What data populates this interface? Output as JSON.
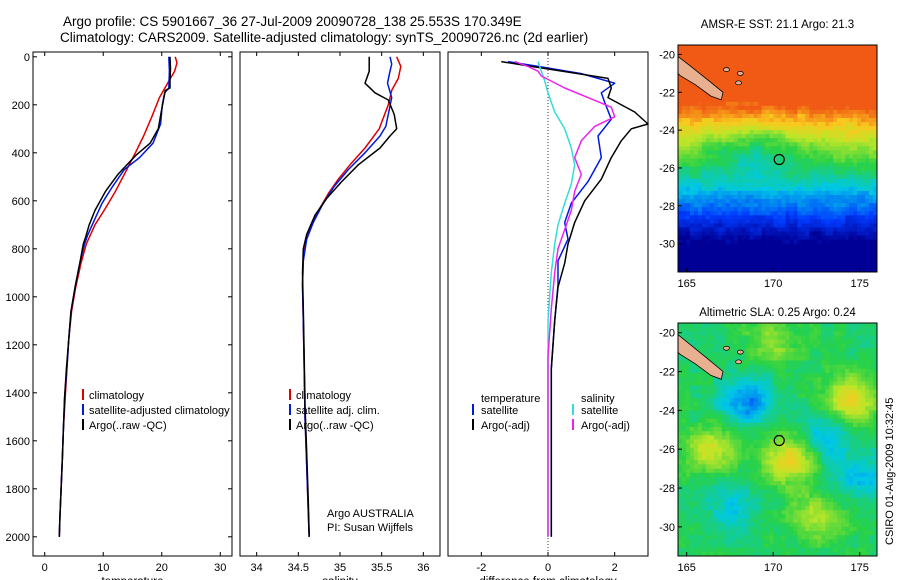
{
  "header": {
    "line1": "Argo profile: CS 5901667_36 27-Jul-2009 20090728_138 25.553S 170.349E",
    "line2": "Climatology: CARS2009. Satellite-adjusted climatology: synTS_20090726.nc (2d earlier)"
  },
  "side_note": "CSIRO 01-Aug-2009 10:32:45",
  "float_note": {
    "line1": "Argo AUSTRALIA",
    "line2": "PI: Susan Wijffels"
  },
  "colors": {
    "red": "#dd0000",
    "blue": "#0018e0",
    "black": "#000000",
    "cyan": "#33dddd",
    "magenta": "#ee22ee",
    "land": "#e8b090"
  },
  "chart_data": [
    {
      "type": "line",
      "id": "temperature",
      "xlabel": "temperature",
      "ylabel": "",
      "xlim": [
        -2,
        32
      ],
      "ylim": [
        2080,
        -20
      ],
      "y_reversed": true,
      "xticks": [
        0,
        10,
        20,
        30
      ],
      "yticks": [
        0,
        200,
        400,
        600,
        800,
        1000,
        1200,
        1400,
        1600,
        1800,
        2000
      ],
      "legend": {
        "position": "lower-right",
        "items": [
          "climatology",
          "satellite-adjusted climatology",
          "Argo(..raw -QC)"
        ]
      },
      "series": [
        {
          "name": "climatology",
          "color": "red",
          "points": [
            [
              22.3,
              0
            ],
            [
              22.6,
              25
            ],
            [
              22.2,
              60
            ],
            [
              21.0,
              110
            ],
            [
              19.6,
              170
            ],
            [
              18.3,
              250
            ],
            [
              16.9,
              330
            ],
            [
              15.5,
              400
            ],
            [
              13.8,
              480
            ],
            [
              12.1,
              560
            ],
            [
              10.4,
              630
            ],
            [
              8.6,
              700
            ],
            [
              7.1,
              780
            ],
            [
              6.2,
              860
            ],
            [
              5.3,
              960
            ],
            [
              4.6,
              1060
            ],
            [
              4.1,
              1180
            ],
            [
              3.8,
              1300
            ],
            [
              3.5,
              1420
            ],
            [
              3.2,
              1550
            ],
            [
              3.0,
              1680
            ],
            [
              2.8,
              1800
            ],
            [
              2.6,
              1920
            ],
            [
              2.5,
              2000
            ]
          ]
        },
        {
          "name": "satellite-adjusted climatology",
          "color": "blue",
          "points": [
            [
              21.2,
              0
            ],
            [
              21.3,
              60
            ],
            [
              21.2,
              130
            ],
            [
              20.5,
              150
            ],
            [
              20.1,
              200
            ],
            [
              19.8,
              280
            ],
            [
              18.5,
              360
            ],
            [
              16.2,
              420
            ],
            [
              13.6,
              470
            ],
            [
              11.6,
              540
            ],
            [
              9.8,
              610
            ],
            [
              8.3,
              690
            ],
            [
              7.4,
              740
            ],
            [
              6.8,
              780
            ],
            [
              6.0,
              860
            ],
            [
              5.2,
              960
            ],
            [
              4.5,
              1060
            ],
            [
              4.1,
              1180
            ],
            [
              3.8,
              1300
            ],
            [
              3.4,
              1420
            ],
            [
              3.2,
              1550
            ],
            [
              3.0,
              1680
            ],
            [
              2.8,
              1800
            ],
            [
              2.6,
              1920
            ],
            [
              2.5,
              2000
            ]
          ]
        },
        {
          "name": "Argo(..raw -QC)",
          "color": "black",
          "points": [
            [
              21.4,
              0
            ],
            [
              21.5,
              50
            ],
            [
              21.4,
              100
            ],
            [
              21.4,
              130
            ],
            [
              20.6,
              140
            ],
            [
              19.9,
              230
            ],
            [
              19.4,
              300
            ],
            [
              18.0,
              360
            ],
            [
              15.6,
              410
            ],
            [
              12.5,
              490
            ],
            [
              10.4,
              560
            ],
            [
              8.6,
              640
            ],
            [
              7.6,
              700
            ],
            [
              7.0,
              750
            ],
            [
              6.6,
              780
            ],
            [
              6.0,
              860
            ],
            [
              5.2,
              960
            ],
            [
              4.5,
              1060
            ],
            [
              4.1,
              1180
            ],
            [
              3.7,
              1300
            ],
            [
              3.4,
              1420
            ],
            [
              3.2,
              1550
            ],
            [
              3.0,
              1680
            ],
            [
              2.8,
              1800
            ],
            [
              2.6,
              1920
            ],
            [
              2.5,
              2000
            ]
          ]
        }
      ]
    },
    {
      "type": "line",
      "id": "salinity",
      "xlabel": "salinity",
      "ylabel": "",
      "xlim": [
        33.8,
        36.2
      ],
      "ylim": [
        2080,
        -20
      ],
      "y_reversed": true,
      "xticks": [
        34,
        34.5,
        35,
        35.5,
        36
      ],
      "yticks": [],
      "legend": {
        "position": "lower-right",
        "items": [
          "climatology",
          "satellite adj. clim.",
          "Argo(..raw -QC)"
        ]
      },
      "series": [
        {
          "name": "climatology",
          "color": "red",
          "points": [
            [
              35.68,
              0
            ],
            [
              35.73,
              40
            ],
            [
              35.7,
              90
            ],
            [
              35.62,
              140
            ],
            [
              35.58,
              200
            ],
            [
              35.47,
              300
            ],
            [
              35.3,
              380
            ],
            [
              35.12,
              450
            ],
            [
              34.98,
              510
            ],
            [
              34.86,
              570
            ],
            [
              34.76,
              630
            ],
            [
              34.66,
              700
            ],
            [
              34.59,
              760
            ],
            [
              34.56,
              850
            ],
            [
              34.55,
              950
            ],
            [
              34.56,
              1100
            ],
            [
              34.57,
              1300
            ],
            [
              34.58,
              1500
            ],
            [
              34.6,
              1700
            ],
            [
              34.62,
              1900
            ],
            [
              34.63,
              2000
            ]
          ]
        },
        {
          "name": "satellite adj. clim.",
          "color": "blue",
          "points": [
            [
              35.6,
              0
            ],
            [
              35.62,
              30
            ],
            [
              35.6,
              60
            ],
            [
              35.57,
              110
            ],
            [
              35.62,
              170
            ],
            [
              35.58,
              240
            ],
            [
              35.55,
              290
            ],
            [
              35.48,
              330
            ],
            [
              35.3,
              400
            ],
            [
              35.1,
              470
            ],
            [
              34.93,
              540
            ],
            [
              34.8,
              610
            ],
            [
              34.68,
              690
            ],
            [
              34.6,
              760
            ],
            [
              34.56,
              850
            ],
            [
              34.55,
              950
            ],
            [
              34.56,
              1100
            ],
            [
              34.57,
              1300
            ],
            [
              34.58,
              1500
            ],
            [
              34.6,
              1700
            ],
            [
              34.62,
              1900
            ],
            [
              34.63,
              2000
            ]
          ]
        },
        {
          "name": "Argo(..raw -QC)",
          "color": "black",
          "points": [
            [
              35.35,
              0
            ],
            [
              35.35,
              60
            ],
            [
              35.3,
              110
            ],
            [
              35.42,
              150
            ],
            [
              35.58,
              180
            ],
            [
              35.65,
              240
            ],
            [
              35.68,
              300
            ],
            [
              35.6,
              330
            ],
            [
              35.48,
              380
            ],
            [
              35.22,
              450
            ],
            [
              35.02,
              520
            ],
            [
              34.84,
              590
            ],
            [
              34.7,
              660
            ],
            [
              34.6,
              740
            ],
            [
              34.56,
              800
            ],
            [
              34.55,
              900
            ],
            [
              34.56,
              1050
            ],
            [
              34.57,
              1250
            ],
            [
              34.58,
              1450
            ],
            [
              34.6,
              1650
            ],
            [
              34.62,
              1850
            ],
            [
              34.63,
              2000
            ]
          ]
        }
      ]
    },
    {
      "type": "line",
      "id": "difference",
      "xlabel": "difference from climatology",
      "ylabel": "",
      "xlim": [
        -3,
        3
      ],
      "ylim": [
        2080,
        -20
      ],
      "y_reversed": true,
      "xticks": [
        -2,
        0,
        2
      ],
      "yticks": [],
      "legend": {
        "position": "lower-right",
        "groups": [
          {
            "title": "temperature",
            "items": [
              "satellite",
              "Argo(-adj)"
            ]
          },
          {
            "title": "salinity",
            "items": [
              "satellite",
              "Argo(-adj)"
            ]
          }
        ]
      },
      "series": [
        {
          "name": "temperature satellite",
          "color": "blue",
          "points": [
            [
              -1.2,
              20
            ],
            [
              -0.3,
              40
            ],
            [
              1.0,
              70
            ],
            [
              2.0,
              110
            ],
            [
              1.6,
              150
            ],
            [
              1.7,
              190
            ],
            [
              1.9,
              260
            ],
            [
              1.5,
              330
            ],
            [
              1.6,
              420
            ],
            [
              1.2,
              520
            ],
            [
              0.7,
              610
            ],
            [
              0.5,
              690
            ],
            [
              0.6,
              760
            ],
            [
              0.3,
              850
            ],
            [
              0.3,
              950
            ],
            [
              0.2,
              1100
            ],
            [
              0.1,
              1300
            ],
            [
              0.1,
              1600
            ],
            [
              0.1,
              1900
            ],
            [
              0.1,
              2000
            ]
          ]
        },
        {
          "name": "temperature Argo(-adj)",
          "color": "black",
          "points": [
            [
              -1.4,
              20
            ],
            [
              -0.5,
              40
            ],
            [
              0.9,
              70
            ],
            [
              1.8,
              90
            ],
            [
              1.9,
              130
            ],
            [
              1.8,
              170
            ],
            [
              2.6,
              230
            ],
            [
              3.0,
              280
            ],
            [
              2.5,
              300
            ],
            [
              2.2,
              350
            ],
            [
              1.9,
              420
            ],
            [
              1.6,
              510
            ],
            [
              1.1,
              600
            ],
            [
              0.8,
              690
            ],
            [
              0.6,
              780
            ],
            [
              0.5,
              860
            ],
            [
              0.3,
              960
            ],
            [
              0.2,
              1100
            ],
            [
              0.1,
              1300
            ],
            [
              0.1,
              1600
            ],
            [
              0.1,
              1900
            ],
            [
              0.1,
              2000
            ]
          ]
        },
        {
          "name": "salinity satellite",
          "color": "cyan",
          "points": [
            [
              -0.3,
              20
            ],
            [
              -0.2,
              60
            ],
            [
              -0.1,
              100
            ],
            [
              0.0,
              150
            ],
            [
              0.2,
              230
            ],
            [
              0.5,
              300
            ],
            [
              0.7,
              380
            ],
            [
              0.8,
              450
            ],
            [
              0.7,
              530
            ],
            [
              0.5,
              610
            ],
            [
              0.3,
              700
            ],
            [
              0.2,
              780
            ],
            [
              0.1,
              900
            ],
            [
              0.0,
              1100
            ],
            [
              0.0,
              1400
            ],
            [
              0.0,
              1700
            ],
            [
              0.0,
              2000
            ]
          ]
        },
        {
          "name": "salinity Argo(-adj)",
          "color": "magenta",
          "points": [
            [
              -1.0,
              20
            ],
            [
              -0.6,
              40
            ],
            [
              -0.3,
              60
            ],
            [
              -0.2,
              80
            ],
            [
              0.5,
              130
            ],
            [
              1.2,
              170
            ],
            [
              1.9,
              210
            ],
            [
              2.0,
              250
            ],
            [
              1.4,
              290
            ],
            [
              1.0,
              350
            ],
            [
              0.8,
              420
            ],
            [
              1.0,
              490
            ],
            [
              0.8,
              560
            ],
            [
              0.7,
              640
            ],
            [
              0.5,
              720
            ],
            [
              0.3,
              800
            ],
            [
              0.2,
              900
            ],
            [
              0.1,
              1050
            ],
            [
              0.0,
              1250
            ],
            [
              0.0,
              1500
            ],
            [
              0.0,
              1800
            ],
            [
              0.0,
              2000
            ]
          ]
        }
      ]
    },
    {
      "type": "heatmap",
      "id": "sst_map",
      "title": "AMSR-E SST: 21.1  Argo: 21.3",
      "xlim": [
        164.5,
        176
      ],
      "ylim": [
        -31.5,
        -19.5
      ],
      "xticks": [
        165,
        170,
        175
      ],
      "yticks": [
        -20,
        -22,
        -24,
        -26,
        -28,
        -30
      ],
      "marker": {
        "lon": 170.349,
        "lat": -25.553
      }
    },
    {
      "type": "heatmap",
      "id": "sla_map",
      "title": "Altimetric SLA: 0.25  Argo: 0.24",
      "xlim": [
        164.5,
        176
      ],
      "ylim": [
        -31.5,
        -19.5
      ],
      "xticks": [
        165,
        170,
        175
      ],
      "yticks": [
        -20,
        -22,
        -24,
        -26,
        -28,
        -30
      ],
      "marker": {
        "lon": 170.349,
        "lat": -25.553
      }
    }
  ]
}
